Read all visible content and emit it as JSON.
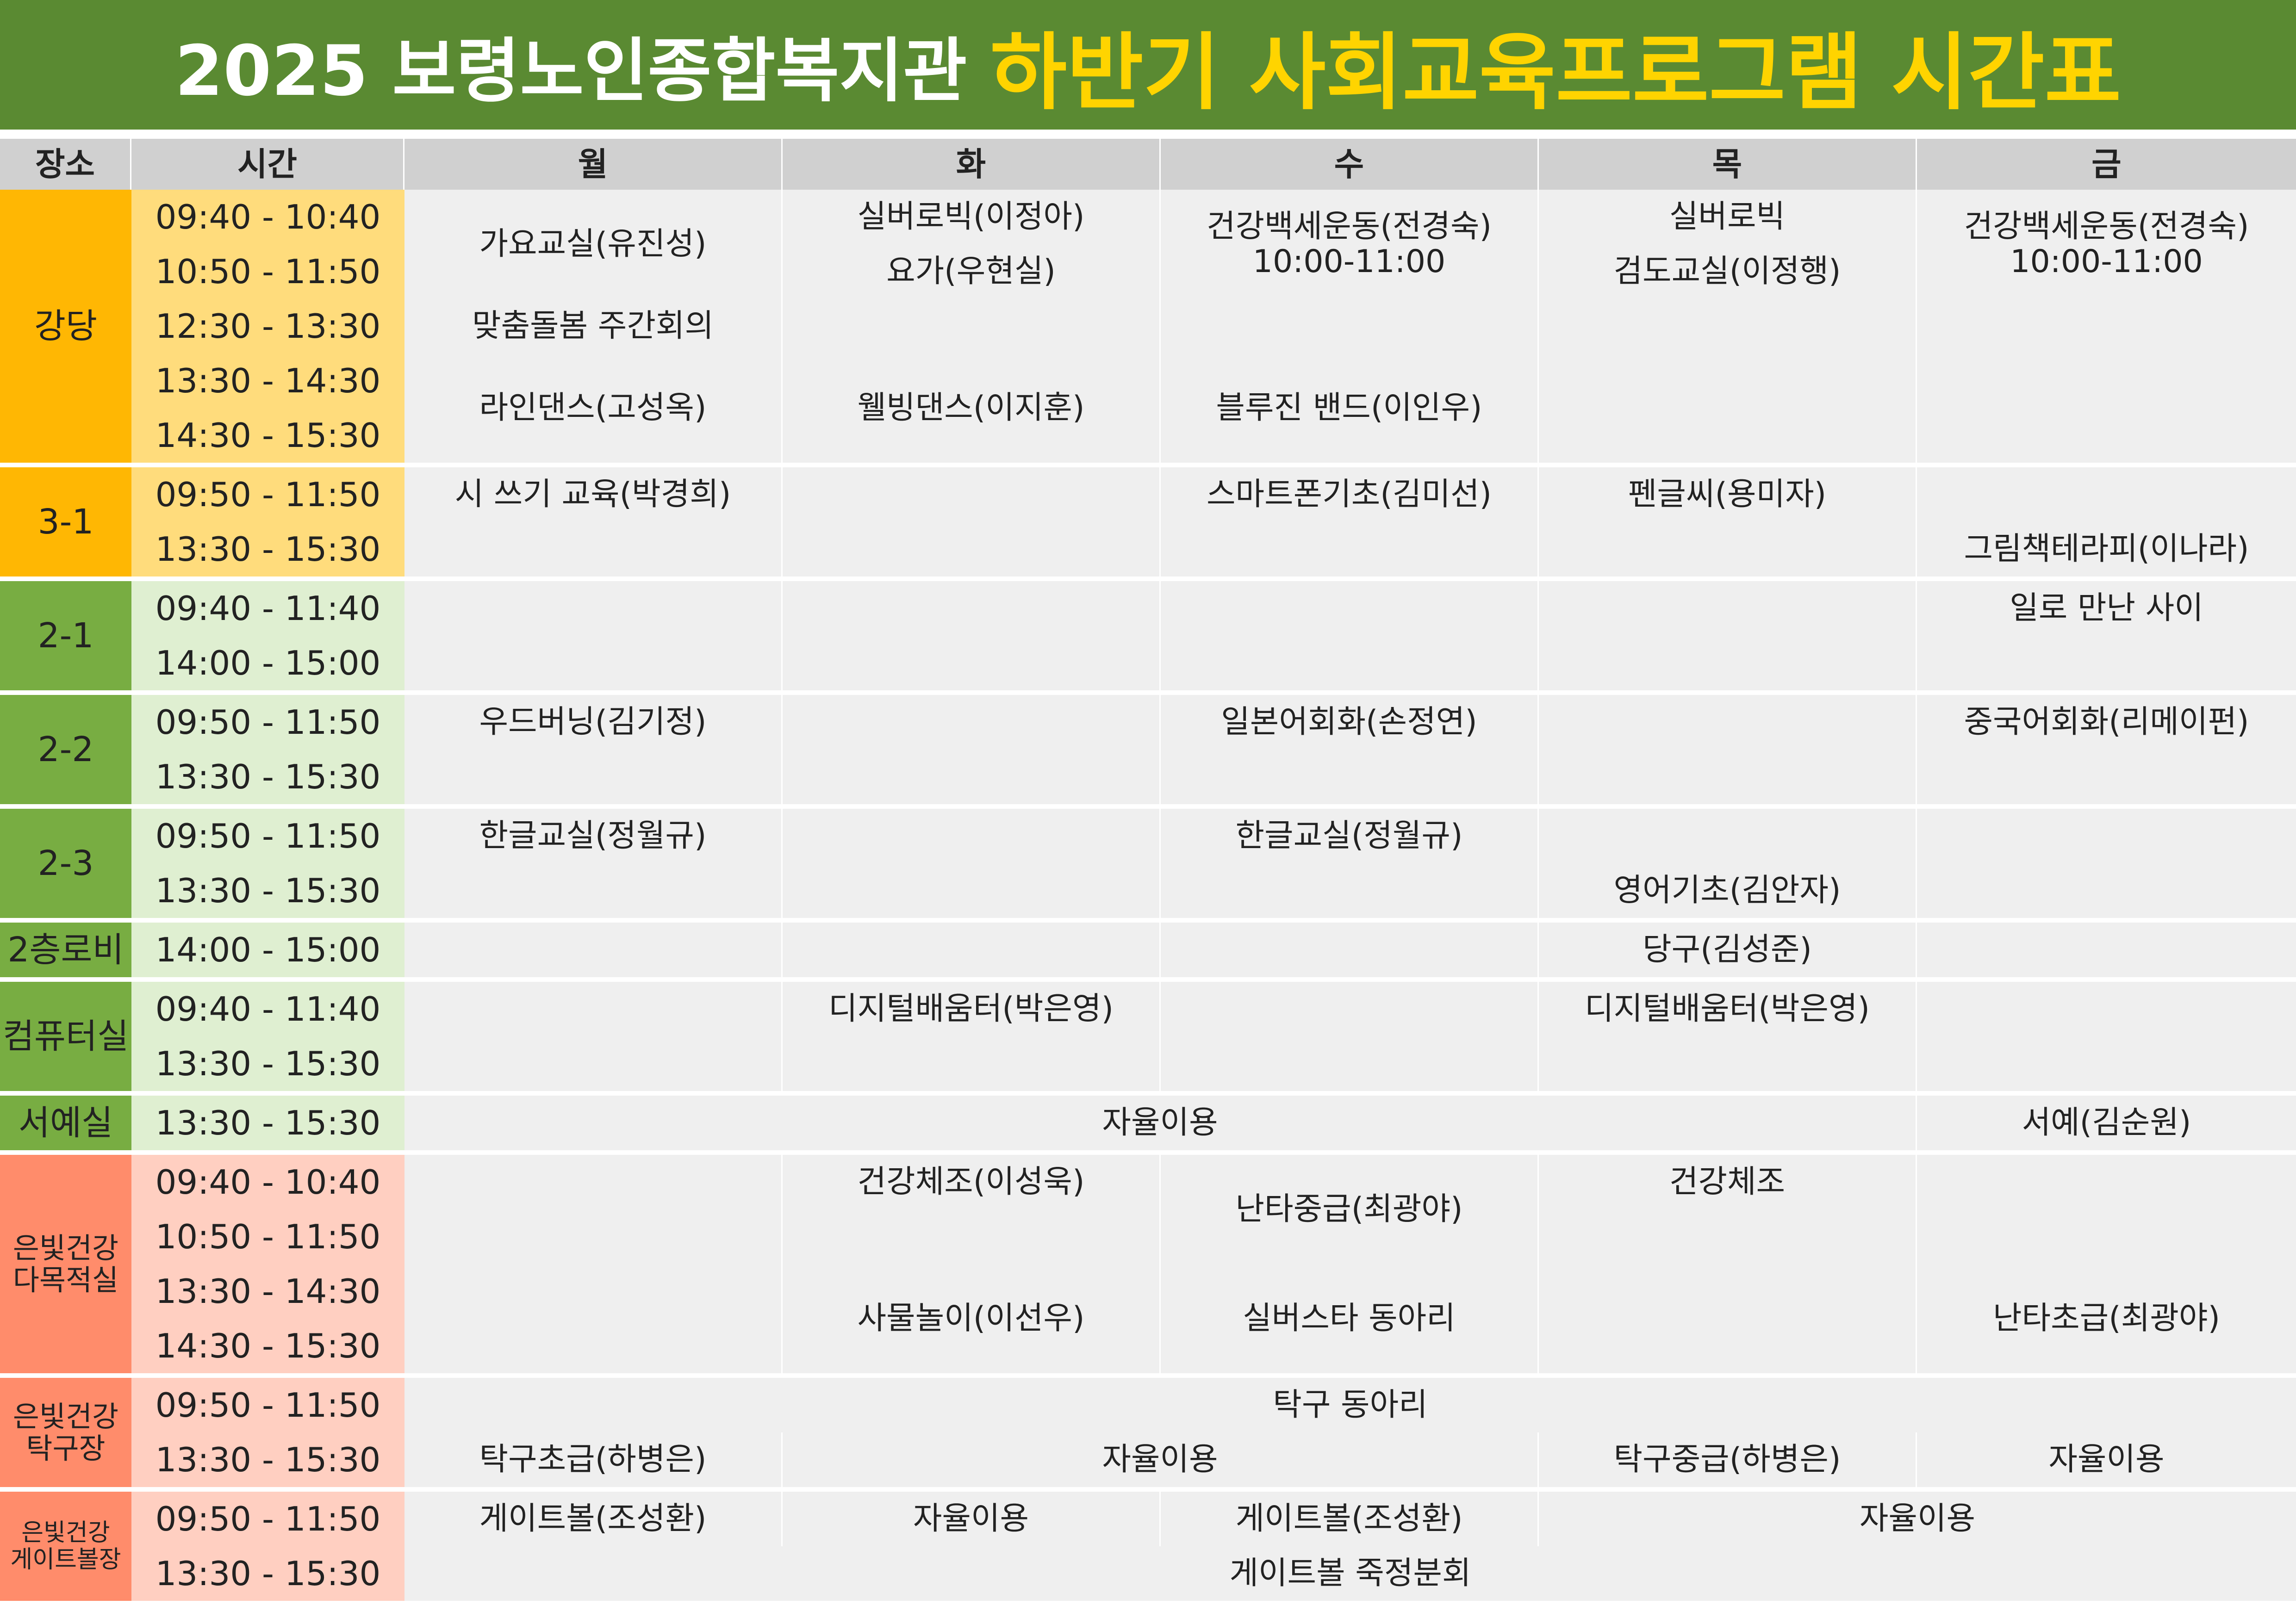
{
  "title": {
    "part1": "2025 보령노인종합복지관",
    "part2": "하반기 사회교육프로그램 시간표"
  },
  "colors": {
    "banner": "#5a8a32",
    "title_highlight": "#ffd400",
    "header": "#d0d0d0",
    "cell": "#efefef",
    "place_yellow": "#ffb703",
    "time_yellow": "#ffdc7c",
    "place_green": "#78ad42",
    "time_green": "#dfefd1",
    "place_coral": "#ff8c6b",
    "time_coral": "#ffcfc1"
  },
  "headers": [
    "장소",
    "시간",
    "월",
    "화",
    "수",
    "목",
    "금"
  ],
  "places": {
    "강당": "강당",
    "r31": "3-1",
    "r21": "2-1",
    "r22": "2-2",
    "r23": "2-3",
    "lobby": "2층로비",
    "pc": "컴퓨터실",
    "calli": "서예실",
    "multi": "은빛건강\n다목적실",
    "tt": "은빛건강\n탁구장",
    "gate": "은빛건강\n게이트볼장"
  },
  "times": {
    "a": "09:40 - 10:40",
    "b": "10:50 - 11:50",
    "c": "12:30 - 13:30",
    "d": "13:30 - 14:30",
    "e": "14:30 - 15:30",
    "f": "09:50 - 11:50",
    "g": "13:30 - 15:30",
    "h": "09:40 - 11:40",
    "i": "14:00 - 15:00"
  },
  "programs": {
    "mon_gayo": "가요교실(유진성)",
    "tue_silver": "실버로빅(이정아)",
    "tue_yoga": "요가(우현실)",
    "wed_health": "건강백세운동(전경숙)\n10:00-11:00",
    "thu_silver": "실버로빅",
    "thu_kendo": "검도교실(이정행)",
    "fri_health": "건강백세운동(전경숙)\n10:00-11:00",
    "mon_meeting": "맞춤돌봄 주간회의",
    "mon_line": "라인댄스(고성옥)",
    "tue_wellbeing": "웰빙댄스(이지훈)",
    "wed_bluejean": "블루진 밴드(이인우)",
    "mon_poem": "시 쓰기 교육(박경희)",
    "wed_smart": "스마트폰기초(김미선)",
    "thu_pen": "펜글씨(용미자)",
    "fri_picture": "그림책테라피(이나라)",
    "fri_ilro": "일로 만난 사이",
    "mon_wood": "우드버닝(김기정)",
    "wed_japan": "일본어회화(손정연)",
    "fri_china": "중국어회화(리메이펀)",
    "mon_hangul": "한글교실(정월규)",
    "wed_hangul": "한글교실(정월규)",
    "thu_english": "영어기초(김안자)",
    "thu_billiard": "당구(김성준)",
    "tue_digital": "디지털배움터(박은영)",
    "thu_digital": "디지털배움터(박은영)",
    "calli_free": "자율이용",
    "fri_calli": "서예(김순원)",
    "tue_exercise": "건강체조(이성욱)",
    "wed_nanta": "난타중급(최광야)",
    "thu_exercise": "건강체조",
    "tue_samul": "사물놀이(이선우)",
    "wed_silverstar": "실버스타 동아리",
    "fri_nanta": "난타초급(최광야)",
    "tt_club": "탁구 동아리",
    "mon_tt": "탁구초급(하병은)",
    "tt_free": "자율이용",
    "thu_tt": "탁구중급(하병은)",
    "fri_tt_free": "자율이용",
    "mon_gate": "게이트볼(조성환)",
    "tue_gate_free": "자율이용",
    "wed_gate": "게이트볼(조성환)",
    "thufri_gate_free": "자율이용",
    "gate_meeting": "게이트볼 죽정분회"
  }
}
